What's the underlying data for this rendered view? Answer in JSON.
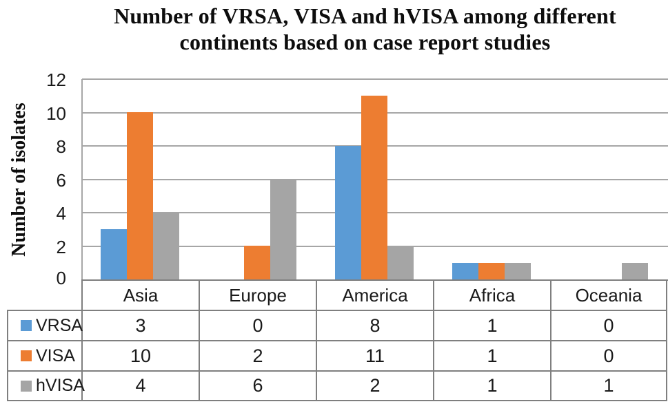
{
  "figure": {
    "title_lines": [
      "Number of VRSA, VISA and hVISA among different",
      "continents based on case report studies"
    ]
  },
  "chart_data": {
    "type": "bar",
    "title": "Number of VRSA, VISA and hVISA among different continents based on case report studies",
    "xlabel": "",
    "ylabel": "Number of isolates",
    "categories": [
      "Asia",
      "Europe",
      "America",
      "Africa",
      "Oceania"
    ],
    "series": [
      {
        "name": "VRSA",
        "color": "#5B9BD5",
        "values": [
          3,
          0,
          8,
          1,
          0
        ]
      },
      {
        "name": "VISA",
        "color": "#ED7D31",
        "values": [
          10,
          2,
          11,
          1,
          0
        ]
      },
      {
        "name": "hVISA",
        "color": "#A5A5A5",
        "values": [
          4,
          6,
          2,
          1,
          1
        ]
      }
    ],
    "ylim": [
      0,
      12
    ],
    "yticks": [
      0,
      2,
      4,
      6,
      8,
      10,
      12
    ],
    "grid": true,
    "legend_position": "data-table-left-column"
  },
  "colors": {
    "gridline": "#A6A6A6",
    "table_border": "#7F7F7F",
    "title_text": "#0D0D0D",
    "body_text": "#1A1A1A",
    "background": "#FFFFFF"
  }
}
